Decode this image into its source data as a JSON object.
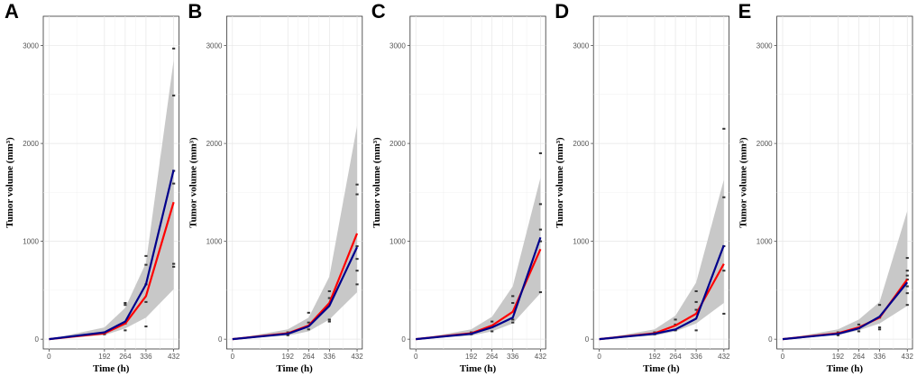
{
  "chart_data": [
    {
      "type": "line",
      "panel_label": "A",
      "xlabel": "Time (h)",
      "ylabel": "Tumor volume (mm³)",
      "x_ticks": [
        0,
        192,
        264,
        336,
        432
      ],
      "y_ticks": [
        0,
        1000,
        2000,
        3000
      ],
      "xlim": [
        -20,
        450
      ],
      "ylim": [
        -100,
        3300
      ],
      "grid": true,
      "band": {
        "name": "prediction interval",
        "color": "#c8c8c8",
        "x": [
          0,
          192,
          264,
          336,
          432
        ],
        "lower": [
          0,
          40,
          110,
          220,
          510
        ],
        "upper": [
          0,
          120,
          320,
          780,
          2850
        ]
      },
      "series": [
        {
          "name": "red line",
          "color": "#ff0000",
          "x": [
            0,
            192,
            264,
            336,
            432
          ],
          "values": [
            0,
            60,
            160,
            440,
            1400
          ]
        },
        {
          "name": "blue line",
          "color": "#00008b",
          "x": [
            0,
            192,
            264,
            336,
            432
          ],
          "values": [
            0,
            70,
            180,
            560,
            1730
          ]
        }
      ],
      "points": {
        "name": "observations",
        "color": "#333333",
        "x": [
          192,
          192,
          264,
          264,
          264,
          264,
          336,
          336,
          336,
          336,
          336,
          432,
          432,
          432,
          432,
          432,
          432
        ],
        "values": [
          50,
          70,
          90,
          160,
          350,
          370,
          130,
          380,
          560,
          760,
          850,
          740,
          770,
          1590,
          1720,
          2490,
          2970
        ]
      }
    },
    {
      "type": "line",
      "panel_label": "B",
      "xlabel": "Time (h)",
      "ylabel": "Tumor volume (mm³)",
      "x_ticks": [
        0,
        192,
        264,
        336,
        432
      ],
      "y_ticks": [
        0,
        1000,
        2000,
        3000
      ],
      "xlim": [
        -20,
        450
      ],
      "ylim": [
        -100,
        3300
      ],
      "grid": true,
      "band": {
        "name": "prediction interval",
        "color": "#c8c8c8",
        "x": [
          0,
          192,
          264,
          336,
          432
        ],
        "lower": [
          0,
          35,
          80,
          200,
          480
        ],
        "upper": [
          0,
          100,
          220,
          640,
          2180
        ]
      },
      "series": [
        {
          "name": "red line",
          "color": "#ff0000",
          "x": [
            0,
            192,
            264,
            336,
            432
          ],
          "values": [
            0,
            60,
            140,
            370,
            1080
          ]
        },
        {
          "name": "blue line",
          "color": "#00008b",
          "x": [
            0,
            192,
            264,
            336,
            432
          ],
          "values": [
            0,
            55,
            130,
            340,
            940
          ]
        }
      ],
      "points": {
        "name": "observations",
        "color": "#333333",
        "x": [
          192,
          192,
          264,
          264,
          264,
          336,
          336,
          336,
          336,
          432,
          432,
          432,
          432,
          432,
          432
        ],
        "values": [
          40,
          70,
          100,
          170,
          270,
          180,
          200,
          420,
          490,
          560,
          700,
          820,
          950,
          1480,
          1580
        ]
      }
    },
    {
      "type": "line",
      "panel_label": "C",
      "xlabel": "Time (h)",
      "ylabel": "Tumor volume (mm³)",
      "x_ticks": [
        0,
        192,
        264,
        336,
        432
      ],
      "y_ticks": [
        0,
        1000,
        2000,
        3000
      ],
      "xlim": [
        -20,
        450
      ],
      "ylim": [
        -100,
        3300
      ],
      "grid": true,
      "band": {
        "name": "prediction interval",
        "color": "#c8c8c8",
        "x": [
          0,
          192,
          264,
          336,
          432
        ],
        "lower": [
          0,
          35,
          80,
          160,
          470
        ],
        "upper": [
          0,
          100,
          230,
          540,
          1650
        ]
      },
      "series": [
        {
          "name": "red line",
          "color": "#ff0000",
          "x": [
            0,
            192,
            264,
            336,
            432
          ],
          "values": [
            0,
            60,
            140,
            280,
            920
          ]
        },
        {
          "name": "blue line",
          "color": "#00008b",
          "x": [
            0,
            192,
            264,
            336,
            432
          ],
          "values": [
            0,
            55,
            120,
            220,
            1040
          ]
        }
      ],
      "points": {
        "name": "observations",
        "color": "#333333",
        "x": [
          192,
          192,
          264,
          264,
          264,
          336,
          336,
          336,
          336,
          432,
          432,
          432,
          432,
          432
        ],
        "values": [
          50,
          70,
          80,
          130,
          180,
          170,
          200,
          370,
          440,
          480,
          1000,
          1120,
          1380,
          1900
        ]
      }
    },
    {
      "type": "line",
      "panel_label": "D",
      "xlabel": "Time (h)",
      "ylabel": "Tumor volume (mm³)",
      "x_ticks": [
        0,
        192,
        264,
        336,
        432
      ],
      "y_ticks": [
        0,
        1000,
        2000,
        3000
      ],
      "xlim": [
        -20,
        450
      ],
      "ylim": [
        -100,
        3300
      ],
      "grid": true,
      "band": {
        "name": "prediction interval",
        "color": "#c8c8c8",
        "x": [
          0,
          192,
          264,
          336,
          432
        ],
        "lower": [
          0,
          35,
          80,
          160,
          370
        ],
        "upper": [
          0,
          100,
          240,
          580,
          1630
        ]
      },
      "series": [
        {
          "name": "red line",
          "color": "#ff0000",
          "x": [
            0,
            192,
            264,
            336,
            432
          ],
          "values": [
            0,
            60,
            140,
            260,
            770
          ]
        },
        {
          "name": "blue line",
          "color": "#00008b",
          "x": [
            0,
            192,
            264,
            336,
            432
          ],
          "values": [
            0,
            55,
            100,
            210,
            960
          ]
        }
      ],
      "points": {
        "name": "observations",
        "color": "#333333",
        "x": [
          192,
          192,
          264,
          264,
          264,
          336,
          336,
          336,
          336,
          432,
          432,
          432,
          432,
          432
        ],
        "values": [
          50,
          70,
          90,
          150,
          200,
          90,
          300,
          380,
          490,
          260,
          700,
          950,
          1450,
          2150
        ]
      }
    },
    {
      "type": "line",
      "panel_label": "E",
      "xlabel": "Time (h)",
      "ylabel": "Tumor volume (mm³)",
      "x_ticks": [
        0,
        192,
        264,
        336,
        432
      ],
      "y_ticks": [
        0,
        1000,
        2000,
        3000
      ],
      "xlim": [
        -20,
        450
      ],
      "ylim": [
        -100,
        3300
      ],
      "grid": true,
      "band": {
        "name": "prediction interval",
        "color": "#c8c8c8",
        "x": [
          0,
          192,
          264,
          336,
          432
        ],
        "lower": [
          0,
          40,
          90,
          160,
          340
        ],
        "upper": [
          0,
          100,
          200,
          380,
          1310
        ]
      },
      "series": [
        {
          "name": "red line",
          "color": "#ff0000",
          "x": [
            0,
            192,
            264,
            336,
            432
          ],
          "values": [
            0,
            60,
            120,
            220,
            610
          ]
        },
        {
          "name": "blue line",
          "color": "#00008b",
          "x": [
            0,
            192,
            264,
            336,
            432
          ],
          "values": [
            0,
            55,
            110,
            230,
            580
          ]
        }
      ],
      "points": {
        "name": "observations",
        "color": "#333333",
        "x": [
          192,
          192,
          264,
          264,
          264,
          336,
          336,
          336,
          336,
          432,
          432,
          432,
          432,
          432,
          432,
          432
        ],
        "values": [
          40,
          70,
          80,
          110,
          150,
          100,
          120,
          220,
          350,
          350,
          470,
          540,
          610,
          650,
          700,
          830
        ]
      }
    }
  ]
}
